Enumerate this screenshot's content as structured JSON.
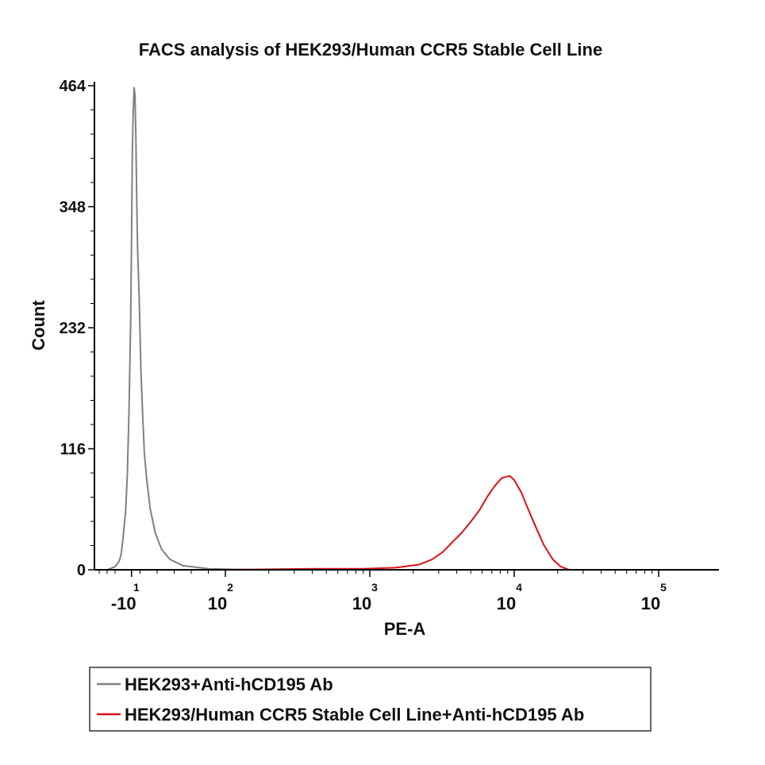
{
  "chart_data": {
    "type": "line",
    "title": "FACS analysis of HEK293/Human CCR5 Stable Cell Line",
    "xlabel": "PE-A",
    "ylabel": "Count",
    "x_scale": "biexponential",
    "ylim": [
      0,
      464
    ],
    "y_ticks": [
      "0",
      "116",
      "232",
      "348",
      "464"
    ],
    "x_ticks": [
      {
        "base": "-10",
        "exp": "1",
        "value": -10
      },
      {
        "base": "10",
        "exp": "2",
        "value": 100
      },
      {
        "base": "10",
        "exp": "3",
        "value": 1000
      },
      {
        "base": "10",
        "exp": "4",
        "value": 10000
      },
      {
        "base": "10",
        "exp": "5",
        "value": 100000
      }
    ],
    "legend_position": "bottom",
    "series": [
      {
        "name": "HEK293+Anti-hCD195 Ab",
        "color": "#808080",
        "points": [
          [
            -100000,
            0
          ],
          [
            -60,
            0
          ],
          [
            -40,
            3
          ],
          [
            -30,
            8
          ],
          [
            -25,
            14
          ],
          [
            -20,
            30
          ],
          [
            -17,
            55
          ],
          [
            -15,
            90
          ],
          [
            -13,
            150
          ],
          [
            -11,
            240
          ],
          [
            -10,
            320
          ],
          [
            -9,
            400
          ],
          [
            -8,
            440
          ],
          [
            -7,
            462
          ],
          [
            -6,
            455
          ],
          [
            -5,
            420
          ],
          [
            -4,
            360
          ],
          [
            -3,
            310
          ],
          [
            -1,
            260
          ],
          [
            1,
            190
          ],
          [
            3,
            150
          ],
          [
            5,
            112
          ],
          [
            8,
            85
          ],
          [
            12,
            58
          ],
          [
            18,
            35
          ],
          [
            25,
            20
          ],
          [
            35,
            10
          ],
          [
            50,
            4
          ],
          [
            80,
            1
          ],
          [
            150,
            0
          ],
          [
            100000,
            0
          ]
        ]
      },
      {
        "name": "HEK293/Human CCR5 Stable Cell Line+Anti-hCD195 Ab",
        "color": "#dd1111",
        "points": [
          [
            -5,
            0
          ],
          [
            100,
            0
          ],
          [
            400,
            1
          ],
          [
            900,
            1
          ],
          [
            1500,
            2
          ],
          [
            2200,
            5
          ],
          [
            2700,
            10
          ],
          [
            3200,
            17
          ],
          [
            3700,
            26
          ],
          [
            4300,
            35
          ],
          [
            5000,
            46
          ],
          [
            5800,
            58
          ],
          [
            6500,
            70
          ],
          [
            7300,
            80
          ],
          [
            8200,
            88
          ],
          [
            9300,
            90
          ],
          [
            10000,
            86
          ],
          [
            11200,
            74
          ],
          [
            12500,
            58
          ],
          [
            14000,
            42
          ],
          [
            16000,
            24
          ],
          [
            18500,
            10
          ],
          [
            21000,
            3
          ],
          [
            24000,
            0
          ],
          [
            100000,
            0
          ]
        ]
      }
    ]
  }
}
